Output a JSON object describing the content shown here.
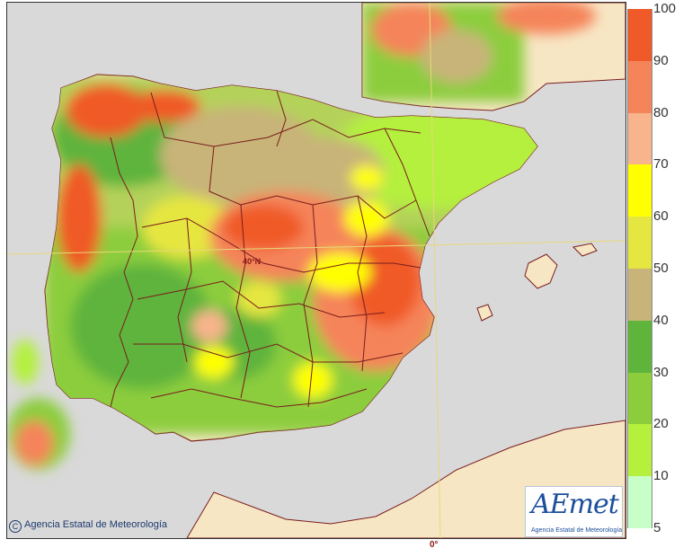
{
  "map": {
    "graticule": {
      "longitude_label": "0°",
      "latitude_label": "40°N"
    }
  },
  "legend": {
    "classes": [
      {
        "label": "100",
        "color": "#f05a28"
      },
      {
        "label": "90",
        "color": "#f5845a"
      },
      {
        "label": "80",
        "color": "#f8b48c"
      },
      {
        "label": "70",
        "color": "#ffff00"
      },
      {
        "label": "60",
        "color": "#e6e640"
      },
      {
        "label": "50",
        "color": "#c8b478"
      },
      {
        "label": "40",
        "color": "#5fb43c"
      },
      {
        "label": "30",
        "color": "#8ccd3c"
      },
      {
        "label": "20",
        "color": "#b4f03c"
      },
      {
        "label": "10",
        "color": "#c8ffc8"
      },
      {
        "label": "5",
        "color": "#a0f0a0"
      }
    ]
  },
  "credit": {
    "text": "Agencia Estatal de Meteorología",
    "symbol": "C"
  },
  "logo": {
    "wordmark": "AEmet",
    "subtitle": "Agencia Estatal de Meteorología"
  },
  "colors": {
    "sea": "#d9d9d9",
    "land_no_data": "#f7e6c4",
    "borders": "#7a1c1c",
    "graticule": "#f0e68c"
  }
}
